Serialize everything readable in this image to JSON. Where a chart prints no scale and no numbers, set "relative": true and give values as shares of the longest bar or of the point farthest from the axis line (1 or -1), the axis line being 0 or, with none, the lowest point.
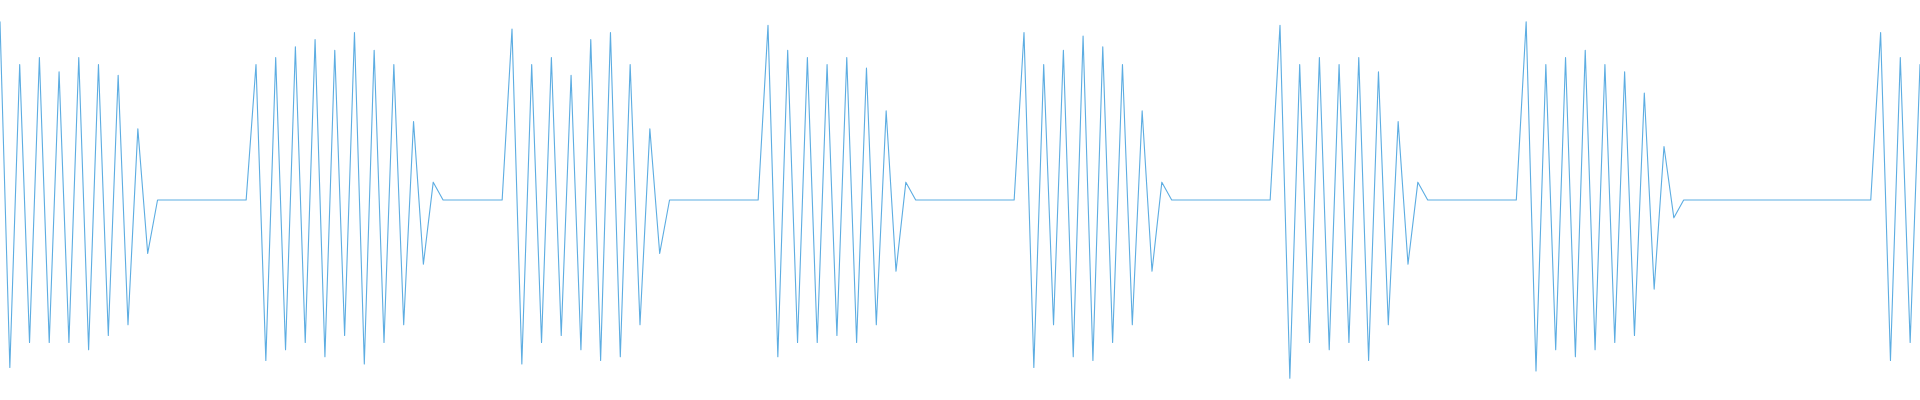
{
  "chart_data": {
    "type": "line",
    "relative": true,
    "legend": false,
    "marker": "none",
    "line_style": "solid",
    "categories": [
      null,
      null,
      null,
      null,
      null,
      null,
      null,
      null,
      null,
      null,
      null,
      null,
      null,
      null,
      null,
      null,
      null,
      null,
      null,
      null,
      null,
      null,
      null,
      null,
      null,
      null,
      null,
      null,
      null,
      null,
      null,
      null,
      null,
      null,
      null,
      null,
      null,
      null,
      null,
      null,
      null,
      null,
      null,
      null,
      null,
      null,
      null,
      null,
      null,
      null,
      null,
      null,
      null,
      null,
      null,
      null,
      null,
      null,
      null,
      null,
      null,
      null,
      null,
      null,
      null,
      null,
      null,
      null,
      null,
      null,
      null,
      null,
      null,
      null,
      null,
      null,
      null,
      null,
      null,
      null,
      null,
      null,
      null,
      null,
      null,
      null,
      null,
      null,
      null,
      null,
      null,
      null,
      null,
      null,
      null,
      null,
      null,
      null,
      null,
      null,
      null,
      null,
      null,
      null,
      null,
      null,
      null,
      null,
      null,
      null,
      null,
      null,
      null,
      null,
      null,
      null,
      null,
      null,
      null,
      null,
      null,
      null,
      null,
      null,
      null,
      null,
      null,
      null,
      null,
      null,
      null,
      null,
      null,
      null,
      null,
      null,
      null,
      null,
      null,
      null,
      null,
      null,
      null,
      null,
      null,
      null,
      null,
      null,
      null,
      null,
      null,
      null,
      null,
      null,
      null,
      null,
      null,
      null,
      null,
      null,
      null,
      null,
      null,
      null,
      null,
      null,
      null,
      null,
      null,
      null,
      null,
      null,
      null,
      null,
      null,
      null,
      null,
      null,
      null,
      null,
      null,
      null,
      null,
      null,
      null,
      null,
      null,
      null,
      null,
      null,
      null,
      null,
      null,
      null,
      null,
      null
    ],
    "series": [
      {
        "color": "#5dade2",
        "values": [
          1.0,
          0.03,
          0.88,
          0.1,
          0.9,
          0.1,
          0.86,
          0.1,
          0.9,
          0.08,
          0.88,
          0.12,
          0.85,
          0.15,
          0.7,
          0.35,
          0.5,
          0.5,
          0.5,
          0.5,
          0.5,
          0.5,
          0.5,
          0.5,
          0.5,
          0.5,
          0.88,
          0.05,
          0.9,
          0.08,
          0.93,
          0.1,
          0.95,
          0.06,
          0.92,
          0.12,
          0.97,
          0.04,
          0.92,
          0.1,
          0.88,
          0.15,
          0.72,
          0.32,
          0.55,
          0.5,
          0.5,
          0.5,
          0.5,
          0.5,
          0.5,
          0.5,
          0.98,
          0.04,
          0.88,
          0.1,
          0.9,
          0.12,
          0.85,
          0.08,
          0.95,
          0.05,
          0.97,
          0.06,
          0.88,
          0.15,
          0.7,
          0.35,
          0.5,
          0.5,
          0.5,
          0.5,
          0.5,
          0.5,
          0.5,
          0.5,
          0.5,
          0.5,
          0.99,
          0.06,
          0.92,
          0.1,
          0.9,
          0.1,
          0.88,
          0.12,
          0.9,
          0.1,
          0.87,
          0.15,
          0.75,
          0.3,
          0.55,
          0.5,
          0.5,
          0.5,
          0.5,
          0.5,
          0.5,
          0.5,
          0.5,
          0.5,
          0.5,
          0.5,
          0.97,
          0.03,
          0.88,
          0.15,
          0.92,
          0.06,
          0.96,
          0.05,
          0.93,
          0.1,
          0.88,
          0.15,
          0.75,
          0.3,
          0.55,
          0.5,
          0.5,
          0.5,
          0.5,
          0.5,
          0.5,
          0.5,
          0.5,
          0.5,
          0.5,
          0.5,
          0.99,
          0.0,
          0.88,
          0.1,
          0.9,
          0.08,
          0.88,
          0.1,
          0.9,
          0.05,
          0.86,
          0.15,
          0.72,
          0.32,
          0.55,
          0.5,
          0.5,
          0.5,
          0.5,
          0.5,
          0.5,
          0.5,
          0.5,
          0.5,
          0.5,
          1.0,
          0.02,
          0.88,
          0.08,
          0.9,
          0.06,
          0.92,
          0.08,
          0.88,
          0.1,
          0.86,
          0.12,
          0.8,
          0.25,
          0.65,
          0.45,
          0.5,
          0.5,
          0.5,
          0.5,
          0.5,
          0.5,
          0.5,
          0.5,
          0.5,
          0.5,
          0.5,
          0.5,
          0.5,
          0.5,
          0.5,
          0.5,
          0.5,
          0.5,
          0.5,
          0.5,
          0.97,
          0.05,
          0.9,
          0.1,
          0.88
        ]
      }
    ]
  }
}
